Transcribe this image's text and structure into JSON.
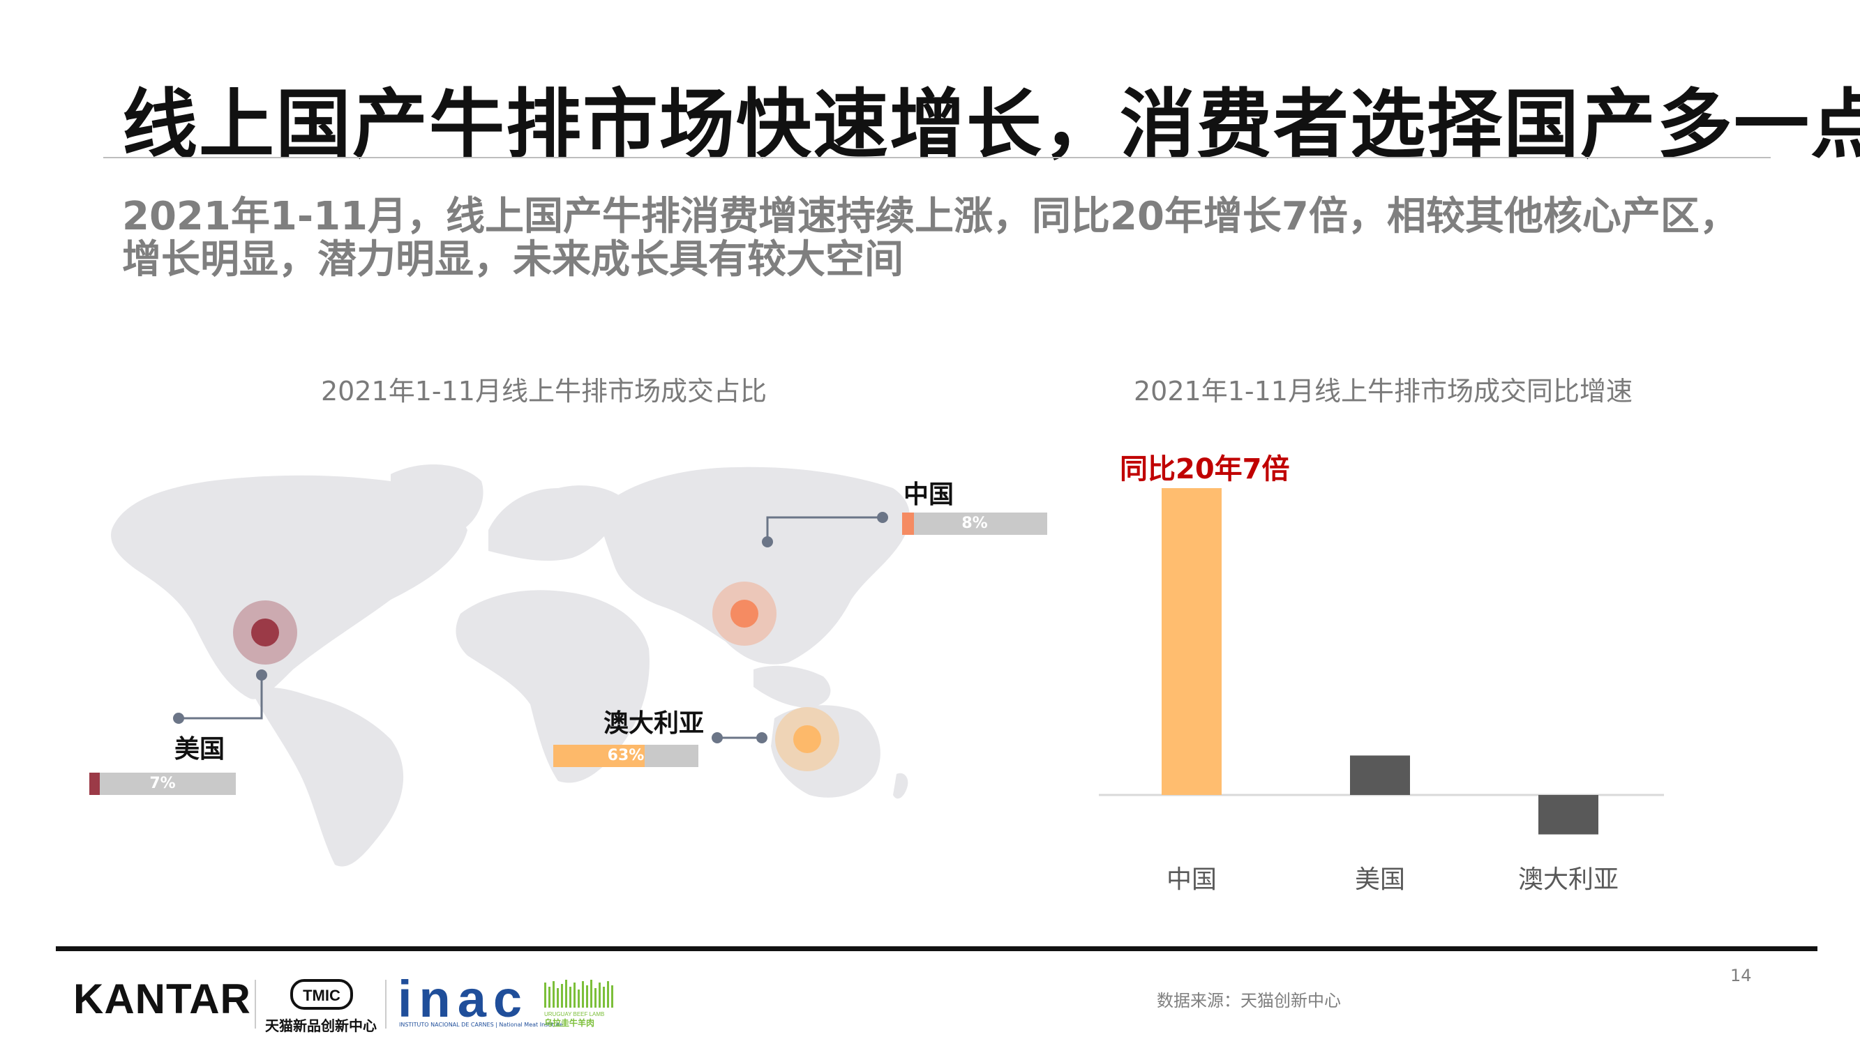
{
  "header": {
    "title": "线上国产牛排市场快速增长，消费者选择国产多一点",
    "subtitle": "2021年1-11月，线上国产牛排消费增速持续上涨，同比20年增长7倍，相较其他核心产区，增长明显，潜力明显，未来成长具有较大空间"
  },
  "colors": {
    "china": "#f58b62",
    "usa": "#9b3a47",
    "australia": "#fdb96a",
    "bar_china": "#ffbd6f",
    "bar_other": "#595959",
    "map": "#e6e6e9",
    "annotation": "#c00000"
  },
  "chart_data": [
    {
      "type": "bar",
      "title": "2021年1-11月线上牛排市场成交占比",
      "representation": "world map with percentage bars",
      "categories": [
        "中国",
        "美国",
        "澳大利亚"
      ],
      "values": [
        8,
        7,
        63
      ],
      "value_labels": [
        "8%",
        "7%",
        "63%"
      ],
      "unit": "%"
    },
    {
      "type": "bar",
      "title": "2021年1-11月线上牛排市场成交同比增速",
      "categories": [
        "中国",
        "美国",
        "澳大利亚"
      ],
      "values": [
        700,
        90,
        -90
      ],
      "annotation": "同比20年7倍",
      "axis_labels_shown": false
    }
  ],
  "footer": {
    "page_number": "14",
    "source": "数据来源：天猫创新中心",
    "logos": {
      "kantar": "KANTAR",
      "tmic_mark": "TMIC",
      "tmic": "天猫新品创新中心",
      "inac": "inac",
      "inac_sub": "INSTITUTO NACIONAL DE CARNES | National Meat Institute",
      "uruguay": "URUGUAY BEEF LAMB",
      "uruguay_cn": "乌拉圭牛羊肉"
    }
  }
}
